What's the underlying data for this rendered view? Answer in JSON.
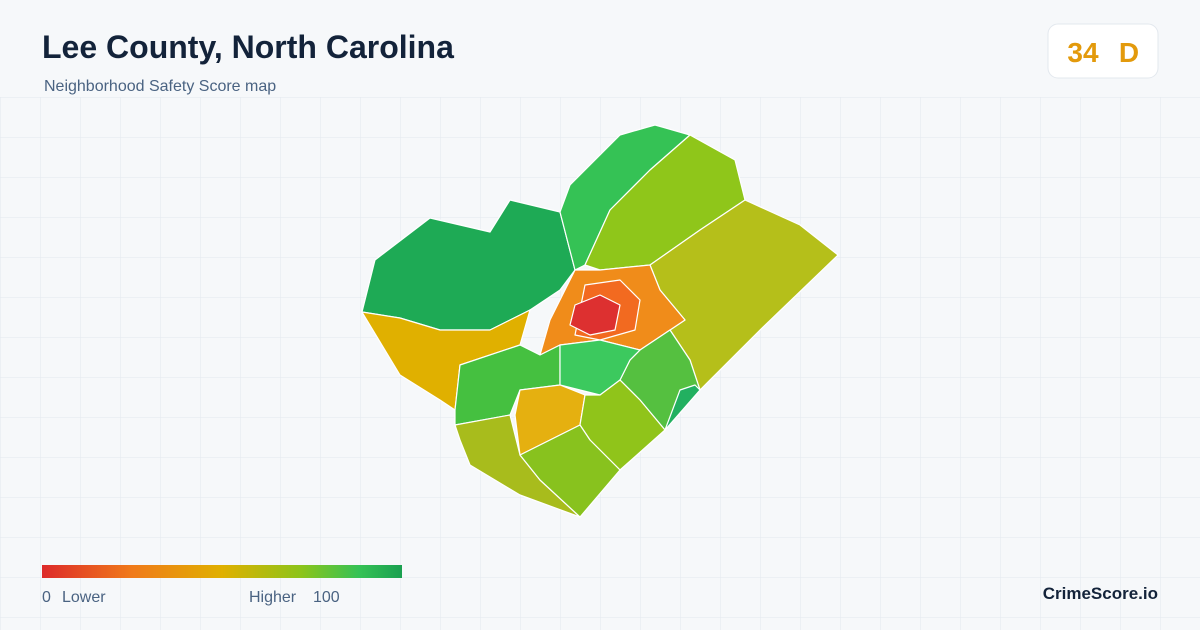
{
  "header": {
    "title": "Lee County, North Carolina",
    "subtitle": "Neighborhood Safety Score map"
  },
  "score": {
    "value": "34",
    "grade": "D"
  },
  "legend": {
    "min": "0",
    "min_label": "Lower",
    "max_label": "Higher",
    "max": "100"
  },
  "footer": {
    "brand": "CrimeScore.io"
  }
}
